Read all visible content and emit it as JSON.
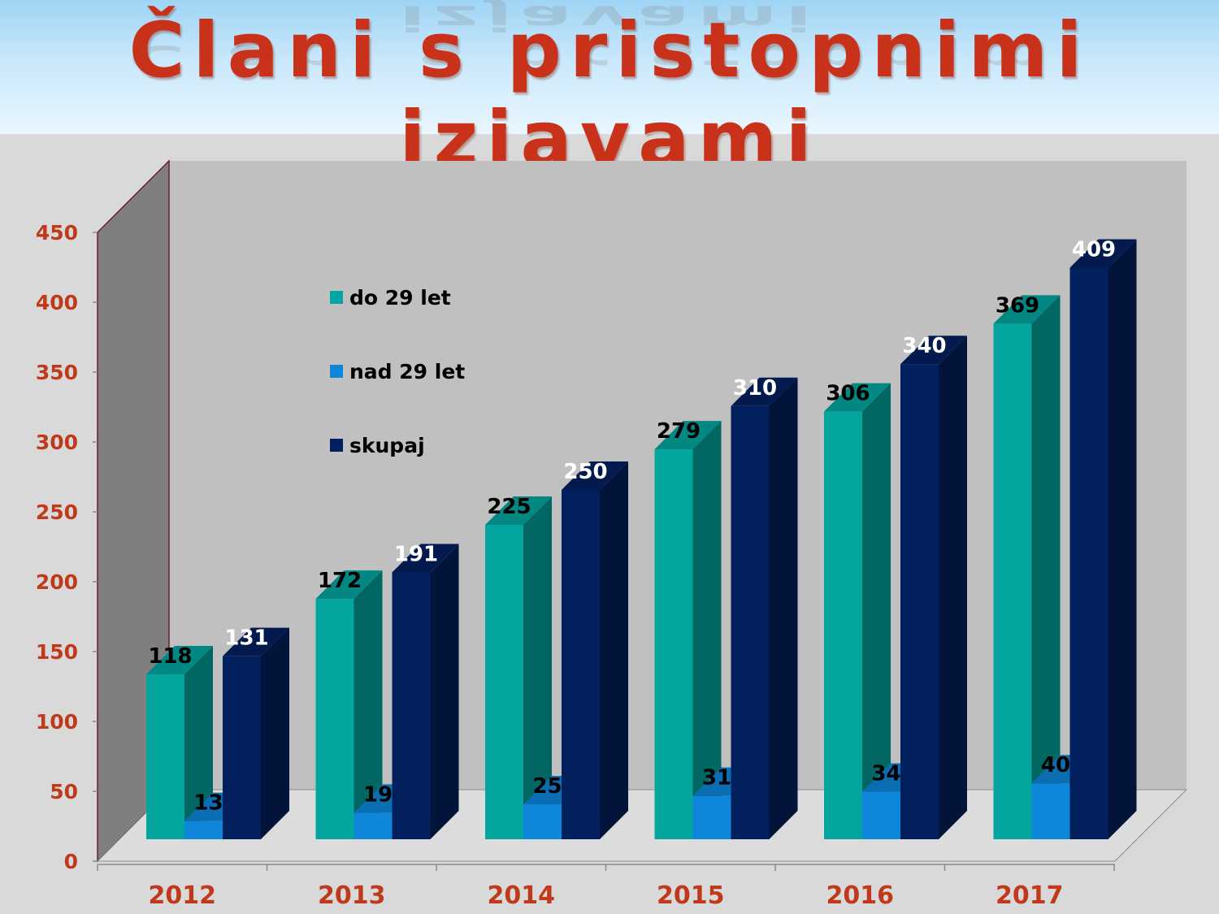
{
  "title": "Člani s pristopnimi izjavami",
  "chart_data": {
    "type": "bar",
    "categories": [
      "2012",
      "2013",
      "2014",
      "2015",
      "2016",
      "2017"
    ],
    "series": [
      {
        "name": "do 29 let",
        "values": [
          118,
          172,
          225,
          279,
          306,
          369
        ],
        "color": "#03a59e"
      },
      {
        "name": "nad 29 let",
        "values": [
          13,
          19,
          25,
          31,
          34,
          40
        ],
        "color": "#0e86d9"
      },
      {
        "name": "skupaj",
        "values": [
          131,
          191,
          250,
          310,
          340,
          409
        ],
        "color": "#03205e"
      }
    ],
    "y_ticks": [
      "0",
      "50",
      "100",
      "150",
      "200",
      "250",
      "300",
      "350",
      "400",
      "450"
    ],
    "ylim": [
      0,
      450
    ],
    "legend_position": "top-left inside plot",
    "grid": false,
    "style": "3d-clustered-columns",
    "label_colors": {
      "do 29 let": "#000000",
      "nad 29 let": "#000000",
      "skupaj": "#ffffff"
    },
    "axis_label_color": "#c0391b"
  }
}
